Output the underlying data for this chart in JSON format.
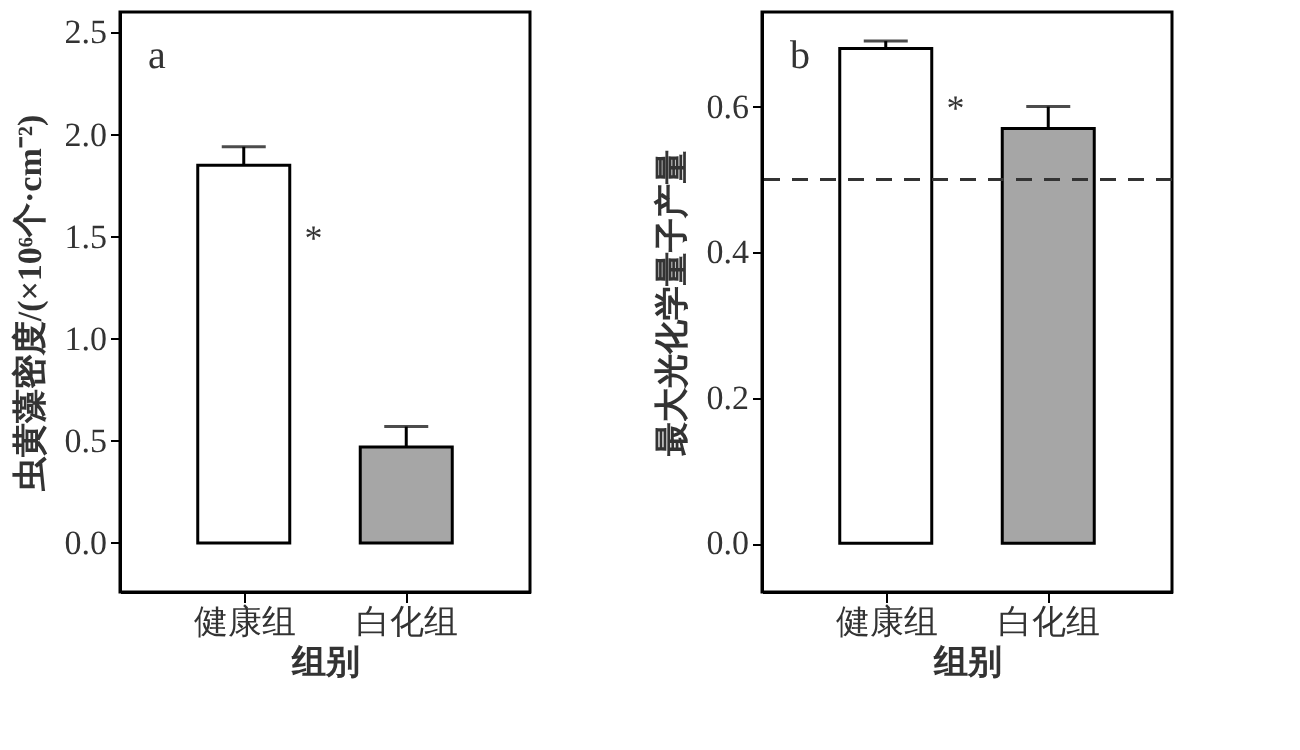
{
  "chart_data": [
    {
      "type": "bar",
      "ylabel": "虫黄藻密度/(×10⁶个·cm⁻²)",
      "xlabel": "组别",
      "categories": [
        "健康组",
        "白化组"
      ],
      "values": [
        1.85,
        0.47
      ],
      "colors": [
        "#ffffff",
        "#a6a6a6"
      ],
      "errors": [
        [
          1.85,
          1.94
        ],
        [
          0.47,
          0.57
        ]
      ],
      "ylim": [
        -0.24,
        2.6
      ],
      "yticks": [
        {
          "value": 0,
          "label": "0.0"
        },
        0.5,
        {
          "value": 1,
          "label": "1.0"
        },
        1.5,
        {
          "value": 2,
          "label": "2.0"
        },
        2.5
      ],
      "grid": false,
      "annotations": [
        "a",
        "*"
      ]
    },
    {
      "type": "bar",
      "ylabel": "最大光化学量子产量",
      "xlabel": "组别",
      "categories": [
        "健康组",
        "白化组"
      ],
      "values": [
        0.68,
        0.57
      ],
      "colors": [
        "#ffffff",
        "#a6a6a6"
      ],
      "errors": [
        [
          0.68,
          0.69
        ],
        [
          0.57,
          0.6
        ]
      ],
      "ylim": [
        -0.067,
        0.73
      ],
      "yticks": [
        {
          "value": 0,
          "label": "0.0"
        },
        0.2,
        0.4,
        0.6
      ],
      "grid": false,
      "ref_lines": [
        {
          "axis": "y",
          "value": 0.5,
          "label": null,
          "color": "#333333",
          "line_style": "dashed"
        }
      ],
      "annotations": [
        "b",
        "*"
      ]
    }
  ]
}
